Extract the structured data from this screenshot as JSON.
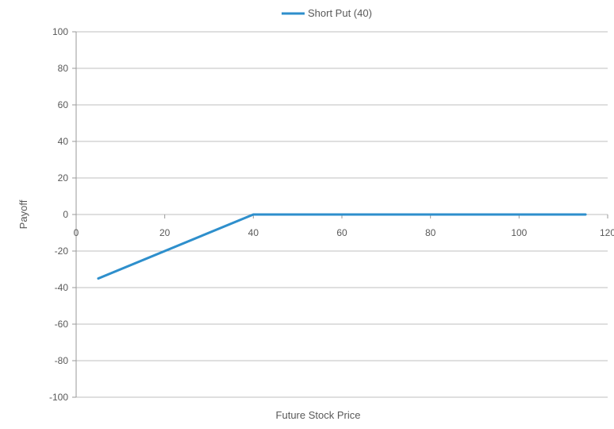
{
  "chart_data": {
    "type": "line",
    "title": "",
    "xlabel": "Future Stock Price",
    "ylabel": "Payoff",
    "xlim": [
      0,
      120
    ],
    "ylim": [
      -100,
      100
    ],
    "x_ticks": [
      0,
      20,
      40,
      60,
      80,
      100,
      120
    ],
    "y_ticks": [
      100,
      80,
      60,
      40,
      20,
      0,
      -20,
      -40,
      -60,
      -80,
      -100
    ],
    "grid": "horizontal",
    "legend_position": "top",
    "series": [
      {
        "name": "Short Put (40)",
        "color": "#2e8fcc",
        "points": [
          {
            "x": 5,
            "y": -35
          },
          {
            "x": 40,
            "y": 0
          },
          {
            "x": 115,
            "y": 0
          }
        ]
      }
    ]
  }
}
